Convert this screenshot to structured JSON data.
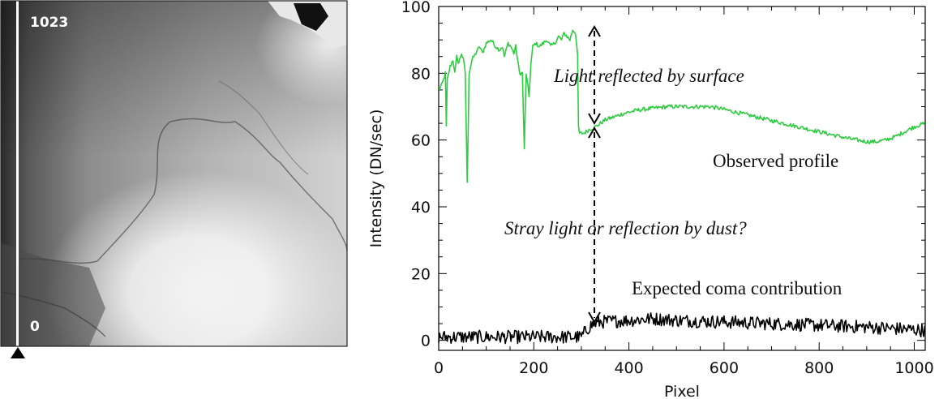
{
  "image_panel": {
    "top_label": "1023",
    "bottom_label": "0"
  },
  "chart_data": {
    "type": "line",
    "xlabel": "Pixel",
    "ylabel": "Intensity  (DN/sec)",
    "xlim": [
      0,
      1023
    ],
    "ylim": [
      -3,
      100
    ],
    "xticks": [
      0,
      200,
      400,
      600,
      800,
      1000
    ],
    "yticks": [
      0,
      20,
      40,
      60,
      80,
      100
    ],
    "series": [
      {
        "name": "Observed profile",
        "color": "#2ecc40",
        "points": [
          [
            0,
            75
          ],
          [
            5,
            76
          ],
          [
            10,
            78
          ],
          [
            14,
            80
          ],
          [
            16,
            64
          ],
          [
            18,
            78
          ],
          [
            24,
            82
          ],
          [
            30,
            84
          ],
          [
            34,
            80
          ],
          [
            38,
            85
          ],
          [
            42,
            83
          ],
          [
            48,
            86
          ],
          [
            52,
            84
          ],
          [
            56,
            80
          ],
          [
            60,
            47
          ],
          [
            64,
            80
          ],
          [
            70,
            84
          ],
          [
            78,
            86
          ],
          [
            86,
            88
          ],
          [
            92,
            86
          ],
          [
            100,
            89
          ],
          [
            110,
            90
          ],
          [
            120,
            88
          ],
          [
            128,
            87
          ],
          [
            134,
            88
          ],
          [
            138,
            85
          ],
          [
            146,
            89
          ],
          [
            152,
            88
          ],
          [
            158,
            86
          ],
          [
            162,
            88
          ],
          [
            170,
            80
          ],
          [
            176,
            80
          ],
          [
            180,
            57
          ],
          [
            184,
            80
          ],
          [
            190,
            73
          ],
          [
            194,
            83
          ],
          [
            198,
            88
          ],
          [
            204,
            89
          ],
          [
            212,
            88
          ],
          [
            220,
            89
          ],
          [
            228,
            90
          ],
          [
            236,
            88
          ],
          [
            244,
            89
          ],
          [
            252,
            91
          ],
          [
            258,
            90
          ],
          [
            264,
            92
          ],
          [
            270,
            91
          ],
          [
            276,
            90
          ],
          [
            282,
            93
          ],
          [
            288,
            92
          ],
          [
            292,
            85
          ],
          [
            294,
            64
          ],
          [
            296,
            62
          ],
          [
            305,
            62
          ],
          [
            315,
            63
          ],
          [
            330,
            64
          ],
          [
            350,
            66
          ],
          [
            370,
            67
          ],
          [
            390,
            68
          ],
          [
            420,
            69
          ],
          [
            450,
            69.5
          ],
          [
            480,
            70
          ],
          [
            510,
            70
          ],
          [
            540,
            70
          ],
          [
            570,
            70
          ],
          [
            590,
            69.5
          ],
          [
            620,
            68.5
          ],
          [
            650,
            67.5
          ],
          [
            680,
            66.5
          ],
          [
            710,
            65.5
          ],
          [
            740,
            64.5
          ],
          [
            770,
            63.5
          ],
          [
            800,
            62.5
          ],
          [
            830,
            61.5
          ],
          [
            860,
            60.5
          ],
          [
            880,
            60
          ],
          [
            900,
            59.5
          ],
          [
            920,
            59.5
          ],
          [
            940,
            60
          ],
          [
            960,
            61
          ],
          [
            980,
            62.5
          ],
          [
            1000,
            64
          ],
          [
            1023,
            65
          ]
        ]
      },
      {
        "name": "Expected coma contribution",
        "color": "#000000",
        "points": [
          [
            0,
            1
          ],
          [
            300,
            1
          ],
          [
            310,
            3
          ],
          [
            320,
            4.5
          ],
          [
            340,
            5.5
          ],
          [
            400,
            6
          ],
          [
            450,
            6.5
          ],
          [
            500,
            6
          ],
          [
            600,
            5.5
          ],
          [
            700,
            5
          ],
          [
            800,
            4.5
          ],
          [
            900,
            4
          ],
          [
            1023,
            3
          ]
        ]
      }
    ],
    "annotations": {
      "reflected": "Light reflected by surface",
      "observed": "Observed profile",
      "stray": "Stray light or reflection by dust?",
      "coma": "Expected coma contribution"
    }
  }
}
